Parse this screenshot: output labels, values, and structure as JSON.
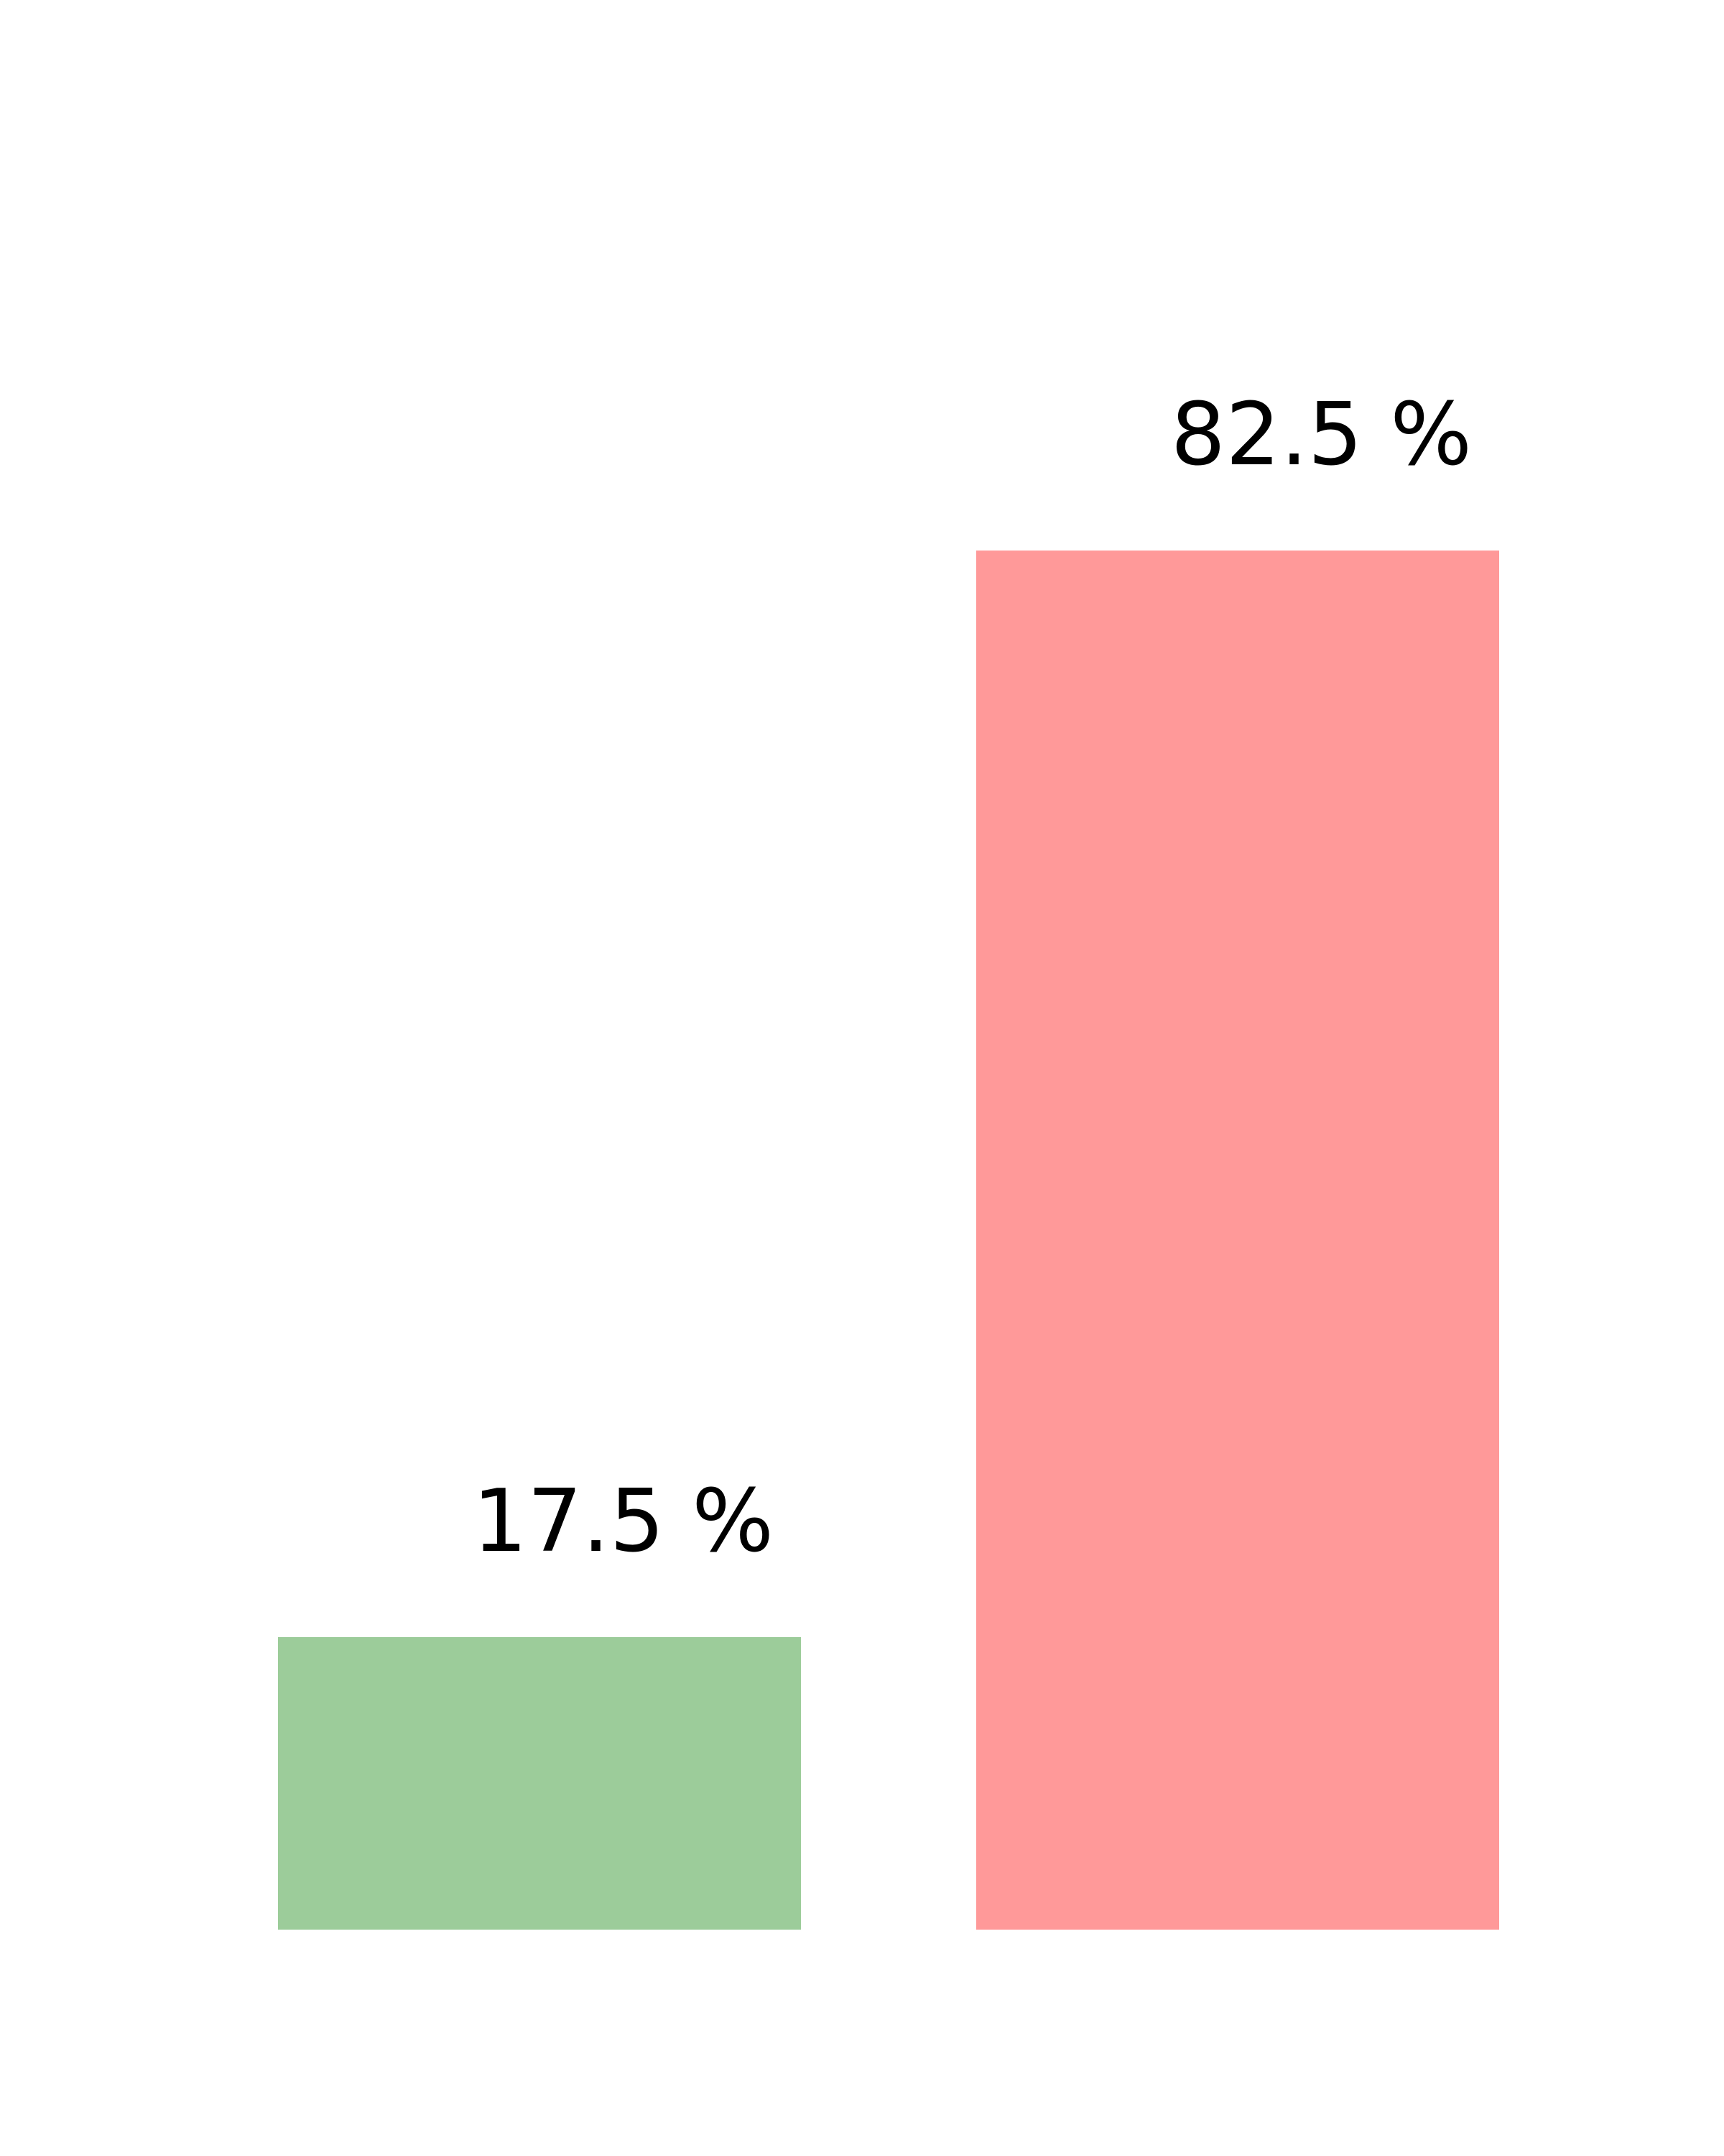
{
  "chart_data": {
    "type": "bar",
    "categories": [
      "",
      ""
    ],
    "values": [
      17.5,
      82.5
    ],
    "data_labels": [
      "17.5 %",
      "82.5 %"
    ],
    "colors": [
      "#9ccc9a",
      "#ff9999"
    ],
    "title": "",
    "xlabel": "",
    "ylabel": "",
    "ylim": [
      0,
      100
    ],
    "grid": false,
    "axes_visible": false,
    "legend": "none"
  }
}
